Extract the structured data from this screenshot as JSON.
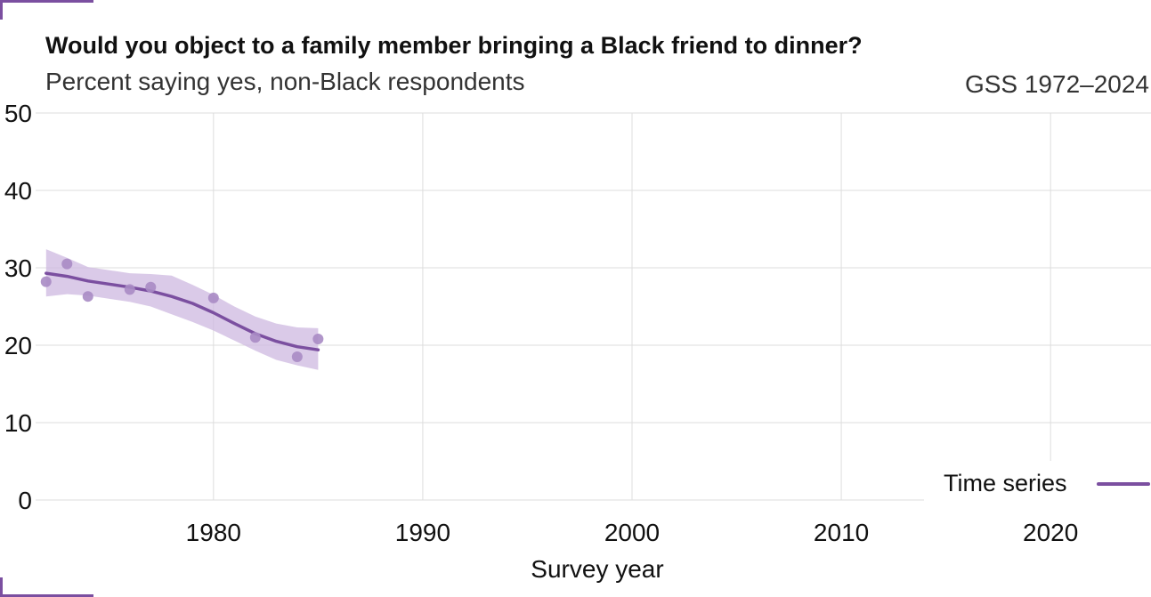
{
  "header": {
    "title": "Would you object to a family member bringing a Black friend to dinner?",
    "subtitle": "Percent saying yes, non-Black respondents",
    "source": "GSS 1972–2024"
  },
  "legend": {
    "label": "Time series"
  },
  "colors": {
    "accent": "#7b4fa0",
    "points": "#a88bc4",
    "band": "#cdb8e0",
    "grid": "#dddddd"
  },
  "chart_data": {
    "type": "line",
    "title": "Would you object to a family member bringing a Black friend to dinner?",
    "subtitle": "Percent saying yes, non-Black respondents",
    "xlabel": "Survey year",
    "ylabel": "",
    "xlim": [
      1971.5,
      2024.8
    ],
    "ylim": [
      0,
      50
    ],
    "x_ticks": [
      1980,
      1990,
      2000,
      2010,
      2020
    ],
    "y_ticks": [
      0,
      10,
      20,
      30,
      40,
      50
    ],
    "grid": true,
    "legend_position": "bottom-right",
    "points": {
      "x": [
        1972,
        1973,
        1974,
        1976,
        1977,
        1980,
        1982,
        1984,
        1985
      ],
      "y": [
        28.2,
        30.5,
        26.3,
        27.2,
        27.5,
        26.1,
        21.0,
        18.5,
        20.8
      ]
    },
    "series": [
      {
        "name": "Time series",
        "x": [
          1972,
          1973,
          1974,
          1975,
          1976,
          1977,
          1978,
          1979,
          1980,
          1981,
          1982,
          1983,
          1984,
          1985
        ],
        "y": [
          29.3,
          28.9,
          28.3,
          27.9,
          27.5,
          27.0,
          26.3,
          25.4,
          24.2,
          22.8,
          21.5,
          20.5,
          19.8,
          19.4
        ],
        "ci_low": [
          26.3,
          26.6,
          26.4,
          26.0,
          25.6,
          25.0,
          24.0,
          23.0,
          21.9,
          20.6,
          19.3,
          18.1,
          17.4,
          16.8
        ],
        "ci_high": [
          32.4,
          31.3,
          30.1,
          29.7,
          29.3,
          29.2,
          29.0,
          27.8,
          26.5,
          25.0,
          23.7,
          22.8,
          22.3,
          22.2
        ]
      }
    ]
  }
}
